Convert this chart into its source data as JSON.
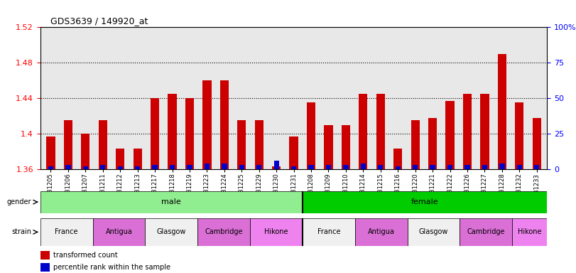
{
  "title": "GDS3639 / 149920_at",
  "samples": [
    "GSM231205",
    "GSM231206",
    "GSM231207",
    "GSM231211",
    "GSM231212",
    "GSM231213",
    "GSM231217",
    "GSM231218",
    "GSM231219",
    "GSM231223",
    "GSM231224",
    "GSM231225",
    "GSM231229",
    "GSM231230",
    "GSM231231",
    "GSM231208",
    "GSM231209",
    "GSM231210",
    "GSM231214",
    "GSM231215",
    "GSM231216",
    "GSM231220",
    "GSM231221",
    "GSM231222",
    "GSM231226",
    "GSM231227",
    "GSM231228",
    "GSM231232",
    "GSM231233"
  ],
  "red_values": [
    1.397,
    1.415,
    1.4,
    1.415,
    1.383,
    1.383,
    1.44,
    1.445,
    1.44,
    1.46,
    1.46,
    1.415,
    1.415,
    1.363,
    1.397,
    1.435,
    1.41,
    1.41,
    1.445,
    1.445,
    1.383,
    1.415,
    1.418,
    1.437,
    1.445,
    1.445,
    1.49,
    1.435,
    1.418
  ],
  "blue_values": [
    2,
    3,
    2,
    3,
    2,
    2,
    3,
    3,
    3,
    4,
    4,
    3,
    3,
    6,
    2,
    3,
    3,
    3,
    4,
    3,
    2,
    3,
    3,
    3,
    3,
    3,
    4,
    3,
    3
  ],
  "ylim_left": [
    1.36,
    1.52
  ],
  "ylim_right": [
    0,
    100
  ],
  "yticks_left": [
    1.36,
    1.4,
    1.44,
    1.48,
    1.52
  ],
  "yticks_right": [
    0,
    25,
    50,
    75,
    100
  ],
  "ytick_labels_right": [
    "0",
    "25",
    "50",
    "75",
    "100%"
  ],
  "gender_groups": [
    {
      "label": "male",
      "start": 0,
      "end": 15,
      "color": "#90EE90"
    },
    {
      "label": "female",
      "start": 15,
      "end": 29,
      "color": "#00CC00"
    }
  ],
  "strain_groups": [
    {
      "label": "France",
      "start": 0,
      "end": 3,
      "color": "#F0F0F0"
    },
    {
      "label": "Antigua",
      "start": 3,
      "end": 6,
      "color": "#DA70D6"
    },
    {
      "label": "Glasgow",
      "start": 6,
      "end": 9,
      "color": "#F0F0F0"
    },
    {
      "label": "Cambridge",
      "start": 9,
      "end": 12,
      "color": "#DA70D6"
    },
    {
      "label": "Hikone",
      "start": 12,
      "end": 15,
      "color": "#EE82EE"
    },
    {
      "label": "France",
      "start": 15,
      "end": 18,
      "color": "#F0F0F0"
    },
    {
      "label": "Antigua",
      "start": 18,
      "end": 21,
      "color": "#DA70D6"
    },
    {
      "label": "Glasgow",
      "start": 21,
      "end": 24,
      "color": "#F0F0F0"
    },
    {
      "label": "Cambridge",
      "start": 24,
      "end": 27,
      "color": "#DA70D6"
    },
    {
      "label": "Hikone",
      "start": 27,
      "end": 29,
      "color": "#EE82EE"
    }
  ],
  "bar_color_red": "#CC0000",
  "bar_color_blue": "#0000CC",
  "background_color": "#FFFFFF",
  "plot_bg_color": "#E8E8E8"
}
